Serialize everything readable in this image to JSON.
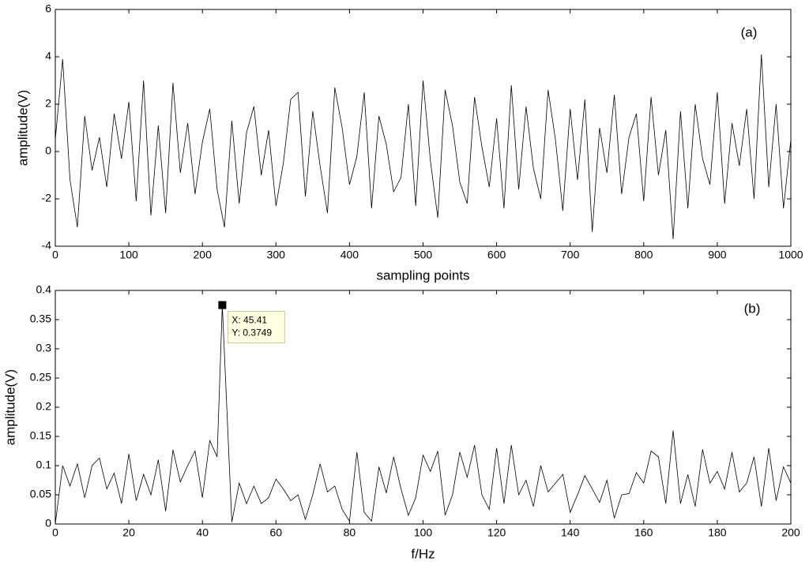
{
  "chart_data": [
    {
      "type": "line",
      "panel_label": "(a)",
      "xlabel": "sampling points",
      "ylabel": "amplitude(V)",
      "x": [
        0,
        10,
        20,
        30,
        40,
        50,
        60,
        70,
        80,
        90,
        100,
        110,
        120,
        130,
        140,
        150,
        160,
        170,
        180,
        190,
        200,
        210,
        220,
        230,
        240,
        250,
        260,
        270,
        280,
        290,
        300,
        310,
        320,
        330,
        340,
        350,
        360,
        370,
        380,
        390,
        400,
        410,
        420,
        430,
        440,
        450,
        460,
        470,
        480,
        490,
        500,
        510,
        520,
        530,
        540,
        550,
        560,
        570,
        580,
        590,
        600,
        610,
        620,
        630,
        640,
        650,
        660,
        670,
        680,
        690,
        700,
        710,
        720,
        730,
        740,
        750,
        760,
        770,
        780,
        790,
        800,
        810,
        820,
        830,
        840,
        850,
        860,
        870,
        880,
        890,
        900,
        910,
        920,
        930,
        940,
        950,
        960,
        970,
        980,
        990,
        1000
      ],
      "values": [
        0.5,
        3.9,
        -1.2,
        -3.2,
        1.5,
        -0.8,
        0.6,
        -1.5,
        1.6,
        -0.3,
        2.1,
        -2.1,
        3.0,
        -2.7,
        1.1,
        -2.6,
        2.9,
        -0.9,
        1.2,
        -1.8,
        0.4,
        1.8,
        -1.6,
        -3.2,
        1.3,
        -2.2,
        0.8,
        1.9,
        -1.0,
        0.9,
        -2.3,
        -0.5,
        2.2,
        2.5,
        -1.9,
        1.7,
        -0.6,
        -2.6,
        2.7,
        1.0,
        -1.4,
        -0.2,
        2.5,
        -2.4,
        1.5,
        0.3,
        -1.7,
        -1.1,
        2.0,
        -2.3,
        3.0,
        -0.4,
        -2.8,
        2.6,
        1.1,
        -1.3,
        -2.2,
        2.3,
        0.2,
        -1.5,
        1.4,
        -2.4,
        2.8,
        -1.6,
        1.9,
        -0.7,
        -2.0,
        2.6,
        0.5,
        -2.5,
        1.8,
        -1.2,
        2.2,
        -3.4,
        1.0,
        -0.9,
        2.4,
        -1.8,
        0.6,
        1.6,
        -2.1,
        2.3,
        -1.0,
        0.9,
        -3.7,
        1.7,
        -2.4,
        2.0,
        -0.3,
        -1.4,
        2.5,
        -2.2,
        1.2,
        -0.6,
        1.8,
        -2.0,
        4.1,
        -1.5,
        2.0,
        -2.4,
        0.5
      ],
      "color": "#000000",
      "xlim": [
        0,
        1000
      ],
      "xticks": [
        0,
        100,
        200,
        300,
        400,
        500,
        600,
        700,
        800,
        900,
        1000
      ],
      "ylim": [
        -4,
        6
      ],
      "yticks": [
        -4,
        -2,
        0,
        2,
        4,
        6
      ]
    },
    {
      "type": "line",
      "panel_label": "(b)",
      "xlabel": "f/Hz",
      "ylabel": "amplitude(V)",
      "x": [
        0,
        2,
        4,
        6,
        8,
        10,
        12,
        14,
        16,
        18,
        20,
        22,
        24,
        26,
        28,
        30,
        32,
        34,
        36,
        38,
        40,
        42,
        44,
        45.41,
        48,
        50,
        52,
        54,
        56,
        58,
        60,
        62,
        64,
        66,
        68,
        70,
        72,
        74,
        76,
        78,
        80,
        82,
        84,
        86,
        88,
        90,
        92,
        94,
        96,
        98,
        100,
        102,
        104,
        106,
        108,
        110,
        112,
        114,
        116,
        118,
        120,
        122,
        124,
        126,
        128,
        130,
        132,
        134,
        136,
        138,
        140,
        142,
        144,
        146,
        148,
        150,
        152,
        154,
        156,
        158,
        160,
        162,
        164,
        166,
        168,
        170,
        172,
        174,
        176,
        178,
        180,
        182,
        184,
        186,
        188,
        190,
        192,
        194,
        196,
        198,
        200
      ],
      "values": [
        0,
        0.1,
        0.065,
        0.103,
        0.045,
        0.1,
        0.113,
        0.06,
        0.087,
        0.035,
        0.12,
        0.04,
        0.085,
        0.05,
        0.11,
        0.022,
        0.127,
        0.072,
        0.1,
        0.125,
        0.045,
        0.143,
        0.115,
        0.3749,
        0.003,
        0.07,
        0.035,
        0.065,
        0.035,
        0.045,
        0.077,
        0.06,
        0.04,
        0.05,
        0.008,
        0.05,
        0.103,
        0.055,
        0.065,
        0.025,
        0.005,
        0.123,
        0.02,
        0.005,
        0.098,
        0.053,
        0.115,
        0.06,
        0.015,
        0.045,
        0.118,
        0.09,
        0.125,
        0.015,
        0.05,
        0.123,
        0.08,
        0.135,
        0.05,
        0.025,
        0.13,
        0.035,
        0.135,
        0.05,
        0.075,
        0.03,
        0.1,
        0.055,
        0.07,
        0.085,
        0.02,
        0.05,
        0.083,
        0.06,
        0.037,
        0.075,
        0.01,
        0.05,
        0.052,
        0.088,
        0.07,
        0.125,
        0.115,
        0.035,
        0.16,
        0.035,
        0.085,
        0.03,
        0.128,
        0.07,
        0.09,
        0.06,
        0.123,
        0.055,
        0.07,
        0.115,
        0.03,
        0.13,
        0.04,
        0.098,
        0.07
      ],
      "color": "#000000",
      "datatip": {
        "index": 23,
        "lines": [
          "X: 45.41",
          "Y: 0.3749"
        ]
      },
      "xlim": [
        0,
        200
      ],
      "xticks": [
        0,
        20,
        40,
        60,
        80,
        100,
        120,
        140,
        160,
        180,
        200
      ],
      "ylim": [
        0,
        0.4
      ],
      "yticks": [
        0,
        0.05,
        0.1,
        0.15,
        0.2,
        0.25,
        0.3,
        0.35,
        0.4
      ]
    }
  ]
}
